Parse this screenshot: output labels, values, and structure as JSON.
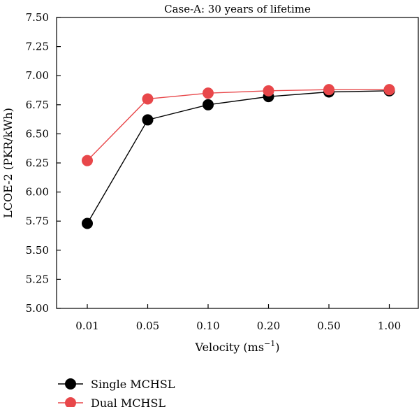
{
  "chart_data": {
    "type": "line",
    "title": "Case-A: 30 years of lifetime",
    "xlabel_main": "Velocity (ms",
    "xlabel_sup": "−1",
    "xlabel_end": ")",
    "ylabel": "LCOE-2 (PKR/kWh)",
    "categories": [
      "0.01",
      "0.05",
      "0.10",
      "0.20",
      "0.50",
      "1.00"
    ],
    "ylim": [
      5.0,
      7.5
    ],
    "yticks": [
      "5.00",
      "5.25",
      "5.50",
      "5.75",
      "6.00",
      "6.25",
      "6.50",
      "6.75",
      "7.00",
      "7.25",
      "7.50"
    ],
    "grid": false,
    "legend_position": "bottom-left, below plot",
    "series": [
      {
        "name": "Single MCHSL",
        "color": "#000000",
        "values": [
          5.73,
          6.62,
          6.75,
          6.82,
          6.86,
          6.87
        ]
      },
      {
        "name": "Dual MCHSL",
        "color": "#e8474a",
        "values": [
          6.27,
          6.8,
          6.85,
          6.87,
          6.88,
          6.88
        ]
      }
    ]
  }
}
